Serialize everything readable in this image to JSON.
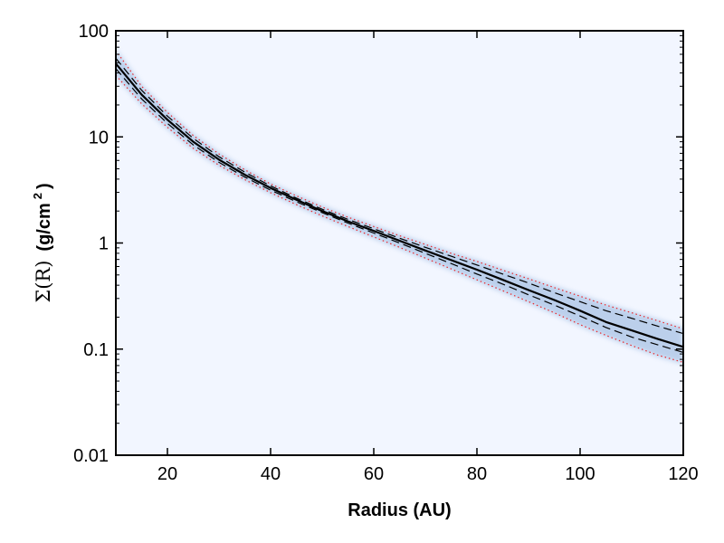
{
  "chart_data": {
    "type": "line",
    "title": "",
    "xlabel": "Radius (AU)",
    "ylabel": {
      "math": "Σ(R)",
      "unit_prefix": "(g/cm",
      "unit_exponent": "2",
      "unit_suffix": ")"
    },
    "xlim": [
      10,
      120
    ],
    "ylim": [
      0.01,
      100
    ],
    "yscale": "log",
    "grid": false,
    "legend": "none",
    "x_ticks": [
      20,
      40,
      60,
      80,
      100,
      120
    ],
    "x_tick_labels": [
      "20",
      "40",
      "60",
      "80",
      "100",
      "120"
    ],
    "y_ticks": [
      0.01,
      0.1,
      1,
      10,
      100
    ],
    "y_tick_labels": [
      "0.01",
      "0.1",
      "1",
      "10",
      "100"
    ],
    "background_fill": "#f2f6ff",
    "band_color": "#8fb0dc",
    "series": [
      {
        "style": "solid",
        "color": "#000000",
        "x": [
          10,
          15,
          20,
          25,
          30,
          35,
          40,
          45,
          50,
          55,
          60,
          65,
          70,
          75,
          80,
          85,
          90,
          95,
          100,
          105,
          110,
          115,
          120
        ],
        "y": [
          49,
          25,
          14.5,
          9.0,
          6.1,
          4.4,
          3.3,
          2.55,
          2.0,
          1.6,
          1.3,
          1.05,
          0.85,
          0.69,
          0.56,
          0.45,
          0.36,
          0.29,
          0.23,
          0.18,
          0.15,
          0.125,
          0.105
        ]
      },
      {
        "style": "dashed",
        "color": "#000000",
        "x": [
          10,
          15,
          20,
          25,
          30,
          35,
          40,
          45,
          50,
          55,
          60,
          65,
          70,
          75,
          80,
          85,
          90,
          95,
          100,
          105,
          110,
          115,
          120
        ],
        "y": [
          55,
          27.5,
          15.7,
          9.7,
          6.5,
          4.65,
          3.45,
          2.65,
          2.08,
          1.67,
          1.36,
          1.11,
          0.91,
          0.75,
          0.62,
          0.51,
          0.42,
          0.34,
          0.28,
          0.23,
          0.195,
          0.165,
          0.14
        ]
      },
      {
        "style": "dashed",
        "color": "#000000",
        "x": [
          10,
          15,
          20,
          25,
          30,
          35,
          40,
          45,
          50,
          55,
          60,
          65,
          70,
          75,
          80,
          85,
          90,
          95,
          100,
          105,
          110,
          115,
          120
        ],
        "y": [
          44,
          22.8,
          13.4,
          8.4,
          5.75,
          4.18,
          3.15,
          2.45,
          1.93,
          1.54,
          1.24,
          1.0,
          0.8,
          0.64,
          0.51,
          0.41,
          0.325,
          0.26,
          0.205,
          0.16,
          0.13,
          0.11,
          0.093
        ]
      },
      {
        "style": "dotted",
        "color": "#e8262a",
        "x": [
          10,
          15,
          20,
          25,
          30,
          35,
          40,
          45,
          50,
          55,
          60,
          65,
          70,
          75,
          80,
          85,
          90,
          95,
          100,
          105,
          110,
          115,
          120
        ],
        "y": [
          65,
          30,
          17,
          10.3,
          6.9,
          4.9,
          3.6,
          2.78,
          2.18,
          1.75,
          1.43,
          1.17,
          0.97,
          0.8,
          0.67,
          0.555,
          0.46,
          0.38,
          0.315,
          0.26,
          0.22,
          0.185,
          0.155
        ]
      },
      {
        "style": "dotted",
        "color": "#e8262a",
        "x": [
          10,
          15,
          20,
          25,
          30,
          35,
          40,
          45,
          50,
          55,
          60,
          65,
          70,
          75,
          80,
          85,
          90,
          95,
          100,
          105,
          110,
          115,
          120
        ],
        "y": [
          38,
          20.5,
          12.3,
          7.8,
          5.4,
          3.95,
          2.98,
          2.3,
          1.8,
          1.43,
          1.14,
          0.91,
          0.72,
          0.57,
          0.45,
          0.355,
          0.28,
          0.22,
          0.17,
          0.135,
          0.108,
          0.088,
          0.075
        ]
      }
    ]
  }
}
